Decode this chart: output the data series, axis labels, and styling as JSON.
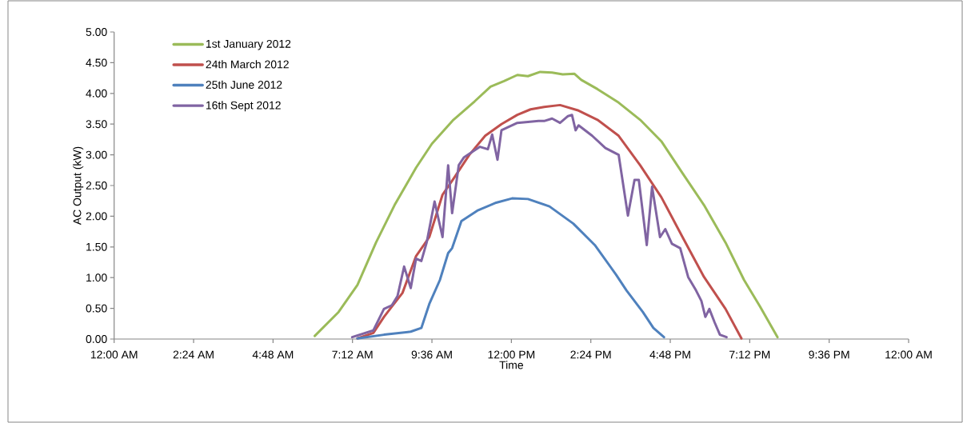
{
  "chart_data": {
    "type": "line",
    "xlabel": "Time",
    "ylabel": "AC Output (kW)",
    "xlim": [
      0,
      24
    ],
    "ylim": [
      0,
      5
    ],
    "xticks": [
      {
        "value": 0,
        "label": "12:00 AM"
      },
      {
        "value": 2.4,
        "label": "2:24 AM"
      },
      {
        "value": 4.8,
        "label": "4:48 AM"
      },
      {
        "value": 7.2,
        "label": "7:12 AM"
      },
      {
        "value": 9.6,
        "label": "9:36 AM"
      },
      {
        "value": 12,
        "label": "12:00 PM"
      },
      {
        "value": 14.4,
        "label": "2:24 PM"
      },
      {
        "value": 16.8,
        "label": "4:48 PM"
      },
      {
        "value": 19.2,
        "label": "7:12 PM"
      },
      {
        "value": 21.6,
        "label": "9:36 PM"
      },
      {
        "value": 24,
        "label": "12:00 AM"
      }
    ],
    "yticks": [
      {
        "value": 0,
        "label": "0.00"
      },
      {
        "value": 0.5,
        "label": "0.50"
      },
      {
        "value": 1,
        "label": "1.00"
      },
      {
        "value": 1.5,
        "label": "1.50"
      },
      {
        "value": 2,
        "label": "2.00"
      },
      {
        "value": 2.5,
        "label": "2.50"
      },
      {
        "value": 3,
        "label": "3.00"
      },
      {
        "value": 3.5,
        "label": "3.50"
      },
      {
        "value": 4,
        "label": "4.00"
      },
      {
        "value": 4.5,
        "label": "4.50"
      },
      {
        "value": 5,
        "label": "5.00"
      }
    ],
    "legend": "top left",
    "line_style": "solid",
    "series": [
      {
        "name": "1st January 2012",
        "color": "#9bbb59",
        "x": [
          6.06,
          6.78,
          7.35,
          7.91,
          8.47,
          9.12,
          9.6,
          10.25,
          10.89,
          11.37,
          11.78,
          12.18,
          12.5,
          12.87,
          13.23,
          13.55,
          13.9,
          14.11,
          14.6,
          15.24,
          15.89,
          16.53,
          17.17,
          17.82,
          18.47,
          19.03,
          19.51,
          20.04
        ],
        "values": [
          0.05,
          0.44,
          0.88,
          1.57,
          2.18,
          2.79,
          3.18,
          3.57,
          3.87,
          4.11,
          4.2,
          4.3,
          4.28,
          4.35,
          4.34,
          4.31,
          4.32,
          4.22,
          4.07,
          3.85,
          3.57,
          3.22,
          2.7,
          2.18,
          1.57,
          0.96,
          0.53,
          0.03
        ]
      },
      {
        "name": "24th March 2012",
        "color": "#c0504d",
        "x": [
          7.35,
          7.83,
          8.15,
          8.39,
          8.71,
          9.12,
          9.52,
          9.92,
          10.25,
          10.73,
          11.21,
          11.7,
          12.18,
          12.58,
          12.99,
          13.47,
          14.03,
          14.6,
          15.24,
          15.89,
          16.53,
          17.17,
          17.82,
          18.47,
          18.95
        ],
        "values": [
          0.01,
          0.1,
          0.36,
          0.53,
          0.75,
          1.35,
          1.66,
          2.35,
          2.61,
          3.0,
          3.31,
          3.5,
          3.65,
          3.74,
          3.78,
          3.81,
          3.72,
          3.57,
          3.31,
          2.83,
          2.31,
          1.66,
          1.01,
          0.49,
          0.01
        ]
      },
      {
        "name": "25th June 2012",
        "color": "#4f81bd",
        "x": [
          7.35,
          8.15,
          8.96,
          9.28,
          9.52,
          9.84,
          10.09,
          10.21,
          10.49,
          10.97,
          11.54,
          12.02,
          12.5,
          13.15,
          13.87,
          14.52,
          15.16,
          15.48,
          15.97,
          16.29,
          16.61
        ],
        "values": [
          0.01,
          0.07,
          0.12,
          0.18,
          0.57,
          0.96,
          1.4,
          1.48,
          1.92,
          2.09,
          2.22,
          2.29,
          2.28,
          2.16,
          1.88,
          1.53,
          1.05,
          0.79,
          0.44,
          0.18,
          0.03
        ]
      },
      {
        "name": "16th Sept 2012",
        "color": "#8064a2",
        "x": [
          7.19,
          7.83,
          8.15,
          8.39,
          8.56,
          8.76,
          8.96,
          9.12,
          9.28,
          9.44,
          9.68,
          9.92,
          10.09,
          10.21,
          10.41,
          10.57,
          11.05,
          11.29,
          11.42,
          11.58,
          11.7,
          12.18,
          12.82,
          12.99,
          13.23,
          13.47,
          13.71,
          13.83,
          13.94,
          14.03,
          14.44,
          14.84,
          15.24,
          15.52,
          15.72,
          15.85,
          16.09,
          16.25,
          16.49,
          16.65,
          16.85,
          17.1,
          17.34,
          17.58,
          17.74,
          17.86,
          17.98,
          18.14,
          18.3,
          18.5
        ],
        "values": [
          0.03,
          0.14,
          0.49,
          0.55,
          0.7,
          1.18,
          0.83,
          1.31,
          1.27,
          1.57,
          2.24,
          1.66,
          2.83,
          2.05,
          2.83,
          2.96,
          3.13,
          3.09,
          3.33,
          2.92,
          3.4,
          3.52,
          3.55,
          3.55,
          3.59,
          3.52,
          3.63,
          3.65,
          3.4,
          3.48,
          3.31,
          3.11,
          3.0,
          2.01,
          2.59,
          2.59,
          1.53,
          2.48,
          1.66,
          1.79,
          1.55,
          1.48,
          1.01,
          0.79,
          0.62,
          0.36,
          0.49,
          0.27,
          0.07,
          0.03
        ]
      }
    ]
  }
}
